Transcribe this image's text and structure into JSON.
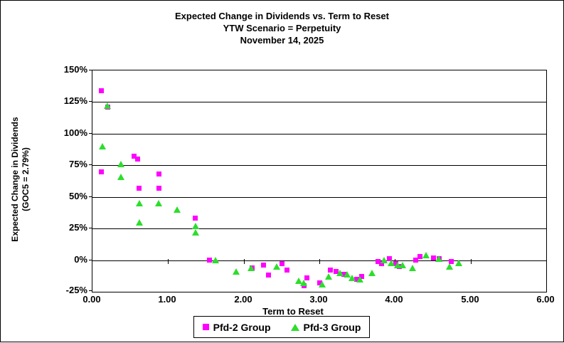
{
  "chart_data": {
    "type": "scatter",
    "title": "Expected Change in Dividends vs. Term to Reset",
    "subtitle": "YTW Scenario = Perpetuity",
    "date_line": "November 14, 2025",
    "xlabel": "Term to Reset",
    "ylabel": "Expected Change in Dividends",
    "ylabel_note": "(GOC5 = 2.79%)",
    "xlim": [
      0,
      6
    ],
    "ylim": [
      -25,
      150
    ],
    "x_ticks": [
      "0.00",
      "1.00",
      "2.00",
      "3.00",
      "4.00",
      "5.00",
      "6.00"
    ],
    "y_ticks": [
      "150%",
      "125%",
      "100%",
      "75%",
      "50%",
      "25%",
      "0%",
      "-25%"
    ],
    "grid": "horizontal",
    "legend_position": "bottom-center",
    "series": [
      {
        "name": "Pfd-2 Group",
        "marker": "square",
        "color": "#FF00FF",
        "points": [
          [
            0.12,
            134
          ],
          [
            0.2,
            121
          ],
          [
            0.12,
            70
          ],
          [
            0.55,
            82
          ],
          [
            0.6,
            80
          ],
          [
            0.62,
            57
          ],
          [
            0.88,
            68
          ],
          [
            0.88,
            57
          ],
          [
            1.36,
            33
          ],
          [
            1.55,
            0
          ],
          [
            2.11,
            -6
          ],
          [
            2.26,
            -4
          ],
          [
            2.33,
            -12
          ],
          [
            2.51,
            -3
          ],
          [
            2.57,
            -8
          ],
          [
            2.8,
            -20
          ],
          [
            2.84,
            -14
          ],
          [
            3.0,
            -18
          ],
          [
            3.15,
            -8
          ],
          [
            3.22,
            -9
          ],
          [
            3.32,
            -11
          ],
          [
            3.49,
            -15
          ],
          [
            3.56,
            -13
          ],
          [
            3.78,
            -1
          ],
          [
            3.82,
            -3
          ],
          [
            3.93,
            1
          ],
          [
            4.01,
            -3
          ],
          [
            4.06,
            -5
          ],
          [
            4.27,
            0
          ],
          [
            4.33,
            3
          ],
          [
            4.51,
            2
          ],
          [
            4.58,
            1
          ],
          [
            4.74,
            -1
          ]
        ]
      },
      {
        "name": "Pfd-3 Group",
        "marker": "triangle",
        "color": "#2CDE2C",
        "points": [
          [
            0.13,
            90
          ],
          [
            0.2,
            122
          ],
          [
            0.38,
            76
          ],
          [
            0.38,
            66
          ],
          [
            0.62,
            45
          ],
          [
            0.62,
            30
          ],
          [
            0.87,
            45
          ],
          [
            1.12,
            40
          ],
          [
            1.36,
            27
          ],
          [
            1.36,
            22
          ],
          [
            1.63,
            0
          ],
          [
            1.9,
            -9
          ],
          [
            2.1,
            -6
          ],
          [
            2.44,
            -5
          ],
          [
            2.73,
            -16
          ],
          [
            2.79,
            -18
          ],
          [
            3.04,
            -19
          ],
          [
            3.12,
            -13
          ],
          [
            3.27,
            -10
          ],
          [
            3.37,
            -11
          ],
          [
            3.43,
            -14
          ],
          [
            3.54,
            -15
          ],
          [
            3.7,
            -10
          ],
          [
            3.86,
            0
          ],
          [
            3.95,
            -2
          ],
          [
            4.03,
            -4
          ],
          [
            4.1,
            -4
          ],
          [
            4.23,
            -6
          ],
          [
            4.41,
            4
          ],
          [
            4.58,
            1
          ],
          [
            4.72,
            -5
          ],
          [
            4.84,
            -2
          ]
        ]
      }
    ]
  }
}
